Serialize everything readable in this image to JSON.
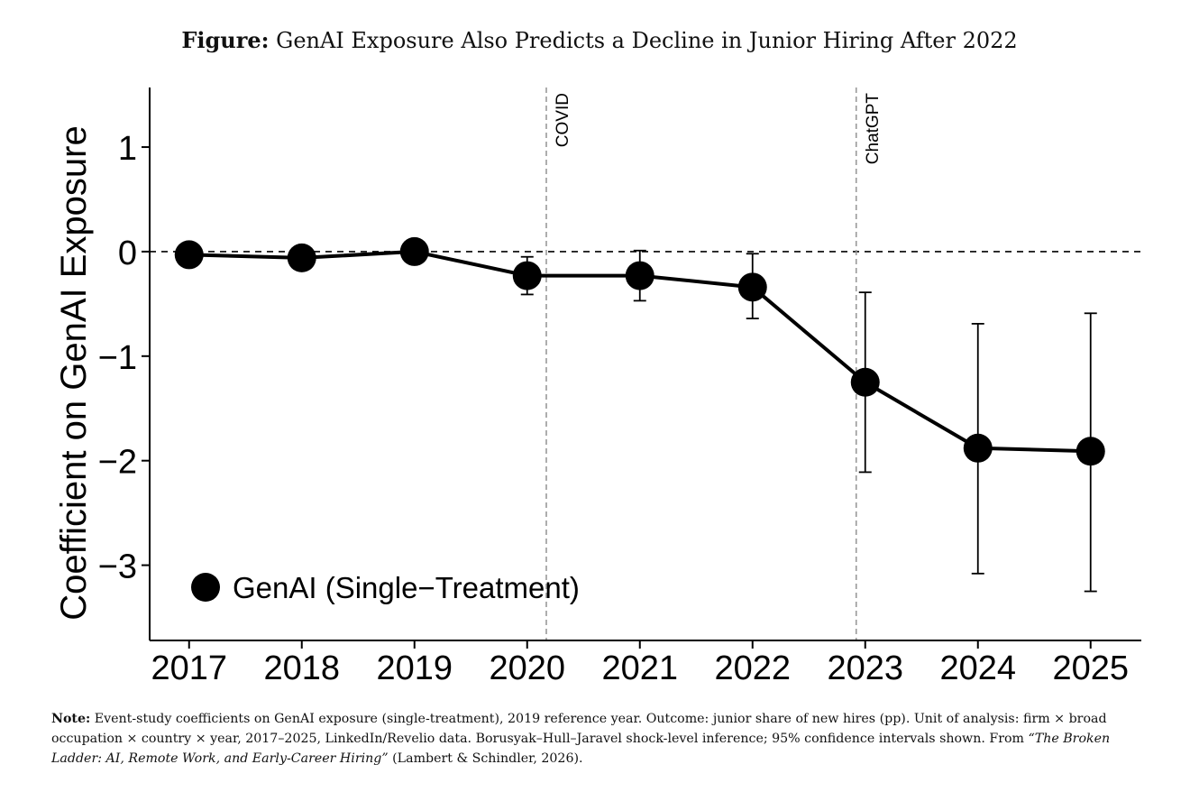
{
  "figure": {
    "label": "Figure:",
    "title": "GenAI Exposure Also Predicts a Decline in Junior Hiring After 2022"
  },
  "chart_data": {
    "type": "line",
    "ylabel": "Coefficient on GenAI Exposure",
    "xlabel": "",
    "x": [
      2017,
      2018,
      2019,
      2020,
      2021,
      2022,
      2023,
      2024,
      2025
    ],
    "x_tick_labels": [
      "2017",
      "2018",
      "2019",
      "2020",
      "2021",
      "2022",
      "2023",
      "2024",
      "2025"
    ],
    "y_ticks": [
      1,
      0,
      -1,
      -2,
      -3
    ],
    "y_tick_labels": [
      "1",
      "0",
      "−1",
      "−2",
      "−3"
    ],
    "xlim": [
      2016.65,
      2025.45
    ],
    "ylim": [
      -3.72,
      1.57
    ],
    "series": [
      {
        "name": "GenAI (Single−Treatment)",
        "values": [
          -0.03,
          -0.06,
          0.0,
          -0.23,
          -0.23,
          -0.34,
          -1.25,
          -1.88,
          -1.91
        ],
        "ci_low": [
          null,
          null,
          null,
          -0.41,
          -0.47,
          -0.64,
          -2.11,
          -3.08,
          -3.25
        ],
        "ci_high": [
          null,
          null,
          null,
          -0.05,
          0.01,
          -0.02,
          -0.39,
          -0.69,
          -0.59
        ]
      }
    ],
    "reference_lines": [
      {
        "axis": "y",
        "value": 0,
        "style": "dashed"
      }
    ],
    "event_lines": [
      {
        "label": "COVID",
        "x": 2020.17
      },
      {
        "label": "ChatGPT",
        "x": 2022.92
      }
    ],
    "grid": false,
    "legend": "bottom-left",
    "colors": {
      "series": "#000000",
      "event_line": "#999999"
    }
  },
  "note": {
    "label": "Note:",
    "text": "Event-study coefficients on GenAI exposure (single-treatment), 2019 reference year. Outcome: junior share of new hires (pp). Unit of analysis: firm × broad occupation × country × year, 2017–2025, LinkedIn/Revelio data. Borusyak–Hull–Jaravel shock-level inference; 95% confidence intervals shown. From ",
    "source_title": "“The Broken Ladder: AI, Remote Work, and Early-Career Hiring”",
    "source_citation": " (Lambert & Schindler, 2026)."
  }
}
